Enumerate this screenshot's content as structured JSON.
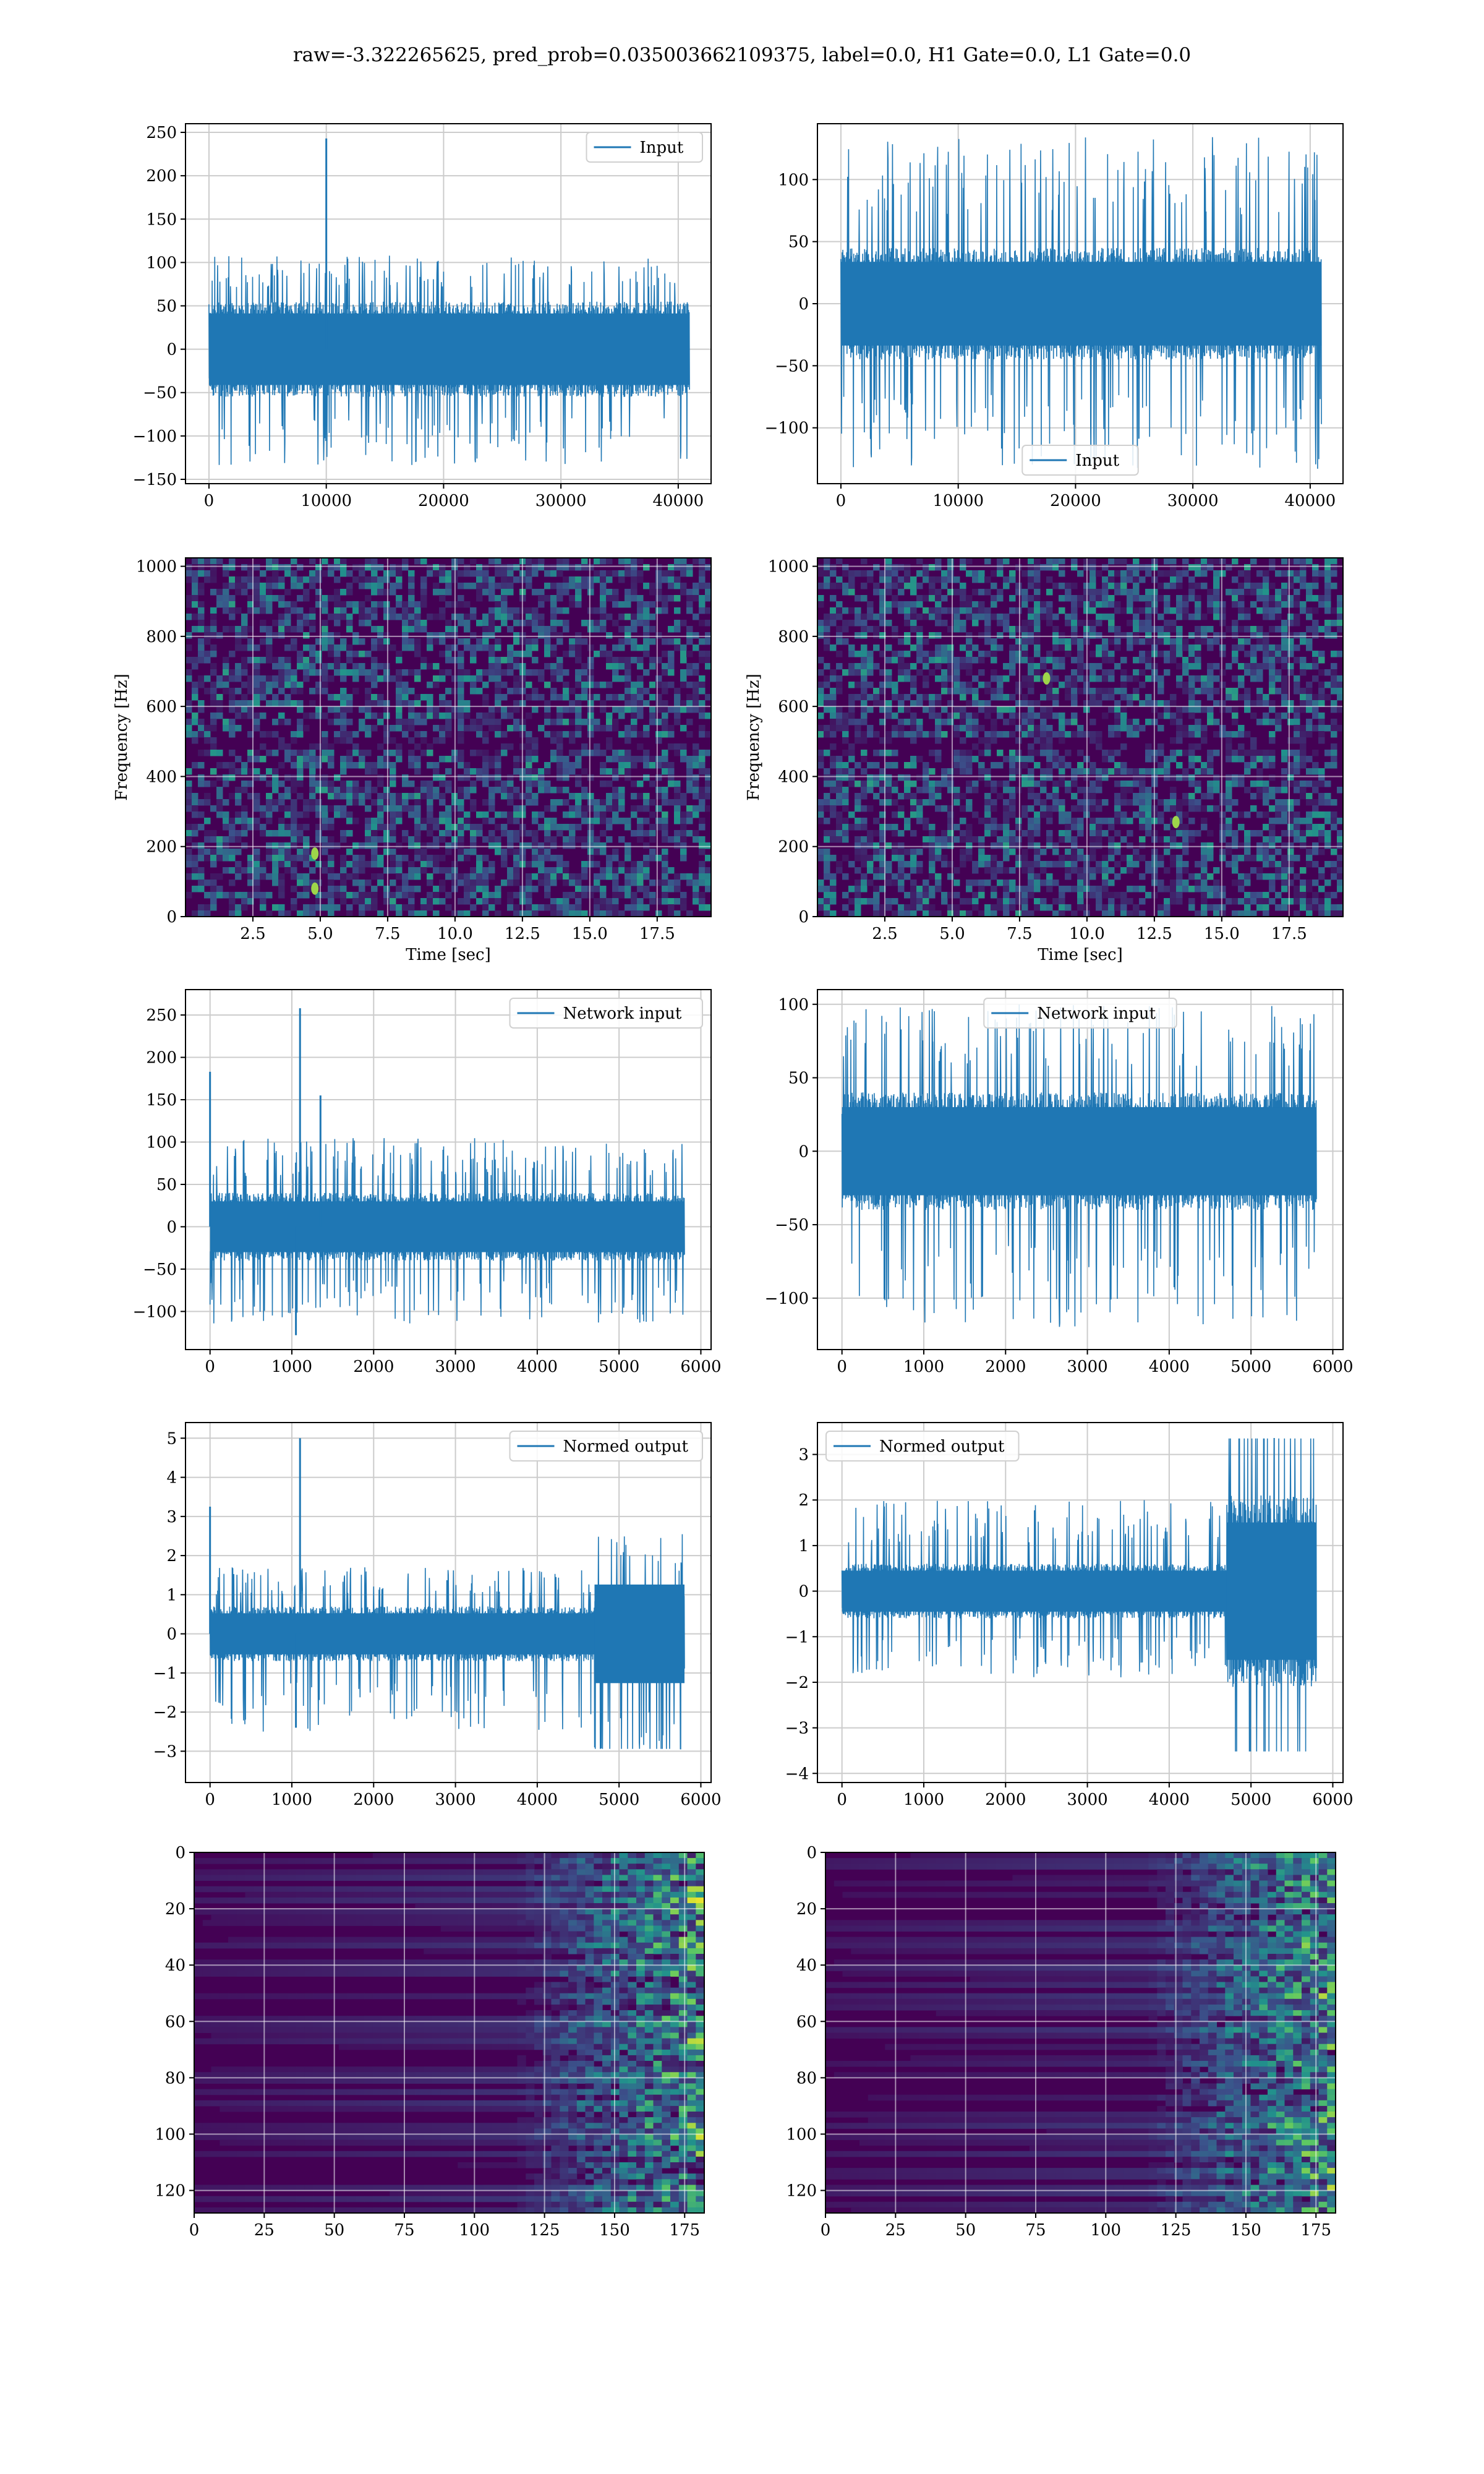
{
  "figure": {
    "title": "raw=-3.322265625, pred_prob=0.035003662109375, label=0.0, H1 Gate=0.0, L1 Gate=0.0"
  },
  "colors": {
    "line": "#1f77b4",
    "grid": "#cccccc",
    "viridis_low": "#440154",
    "viridis_high": "#fde725"
  },
  "chart_data": [
    {
      "id": "input-h1",
      "type": "line",
      "legend": "Input",
      "legend_loc": "upper right",
      "xlim": [
        -2000,
        42800
      ],
      "ylim": [
        -155,
        260
      ],
      "xticks": [
        0,
        10000,
        20000,
        30000,
        40000
      ],
      "yticks": [
        -150,
        -100,
        -50,
        0,
        50,
        100,
        150,
        200,
        250
      ],
      "series": [
        {
          "x_range": [
            0,
            40960
          ],
          "band_lo": -55,
          "band_hi": 55,
          "peak_hi": 108,
          "peak_lo": -135,
          "spikes": [
            {
              "x": 10000,
              "y": 243
            }
          ]
        }
      ]
    },
    {
      "id": "input-l1",
      "type": "line",
      "legend": "Input",
      "legend_loc": "lower center",
      "xlim": [
        -2000,
        42800
      ],
      "ylim": [
        -145,
        145
      ],
      "xticks": [
        0,
        10000,
        20000,
        30000,
        40000
      ],
      "yticks": [
        -100,
        -50,
        0,
        50,
        100
      ],
      "series": [
        {
          "x_range": [
            0,
            40960
          ],
          "band_lo": -45,
          "band_hi": 45,
          "peak_hi": 135,
          "peak_lo": -135,
          "spikes": []
        }
      ]
    },
    {
      "id": "spectrogram-h1",
      "type": "heatmap",
      "xlabel": "Time [sec]",
      "ylabel": "Frequency [Hz]",
      "xlim": [
        0,
        19.5
      ],
      "ylim": [
        0,
        1024
      ],
      "xticks": [
        2.5,
        5.0,
        7.5,
        10.0,
        12.5,
        15.0,
        17.5
      ],
      "xtick_labels": [
        "2.5",
        "5.0",
        "7.5",
        "10.0",
        "12.5",
        "15.0",
        "17.5"
      ],
      "yticks": [
        0,
        200,
        400,
        600,
        800,
        1000
      ],
      "hotspots": [
        {
          "x": 4.8,
          "y": 80
        },
        {
          "x": 4.8,
          "y": 180
        }
      ]
    },
    {
      "id": "spectrogram-l1",
      "type": "heatmap",
      "xlabel": "Time [sec]",
      "ylabel": "Frequency [Hz]",
      "xlim": [
        0,
        19.5
      ],
      "ylim": [
        0,
        1024
      ],
      "xticks": [
        2.5,
        5.0,
        7.5,
        10.0,
        12.5,
        15.0,
        17.5
      ],
      "xtick_labels": [
        "2.5",
        "5.0",
        "7.5",
        "10.0",
        "12.5",
        "15.0",
        "17.5"
      ],
      "yticks": [
        0,
        200,
        400,
        600,
        800,
        1000
      ],
      "hotspots": [
        {
          "x": 8.5,
          "y": 680
        },
        {
          "x": 13.3,
          "y": 270
        }
      ]
    },
    {
      "id": "network-input-h1",
      "type": "line",
      "legend": "Network input",
      "legend_loc": "upper right",
      "xlim": [
        -300,
        6125
      ],
      "ylim": [
        -145,
        280
      ],
      "xticks": [
        0,
        1000,
        2000,
        3000,
        4000,
        5000,
        6000
      ],
      "yticks": [
        -100,
        -50,
        0,
        50,
        100,
        150,
        200,
        250
      ],
      "series": [
        {
          "x_range": [
            0,
            5800
          ],
          "band_lo": -40,
          "band_hi": 40,
          "peak_hi": 105,
          "peak_lo": -115,
          "spikes": [
            {
              "x": 0,
              "y": 183
            },
            {
              "x": 1100,
              "y": 258
            },
            {
              "x": 1050,
              "y": -128
            },
            {
              "x": 1350,
              "y": 155
            }
          ]
        }
      ]
    },
    {
      "id": "network-input-l1",
      "type": "line",
      "legend": "Network input",
      "legend_loc": "upper center",
      "xlim": [
        -300,
        6125
      ],
      "ylim": [
        -135,
        110
      ],
      "xticks": [
        0,
        1000,
        2000,
        3000,
        4000,
        5000,
        6000
      ],
      "yticks": [
        -100,
        -50,
        0,
        50,
        100
      ],
      "series": [
        {
          "x_range": [
            0,
            5800
          ],
          "band_lo": -40,
          "band_hi": 40,
          "peak_hi": 100,
          "peak_lo": -120,
          "spikes": []
        }
      ]
    },
    {
      "id": "normed-output-h1",
      "type": "line",
      "legend": "Normed output",
      "legend_loc": "upper right",
      "xlim": [
        -300,
        6125
      ],
      "ylim": [
        -3.8,
        5.4
      ],
      "xticks": [
        0,
        1000,
        2000,
        3000,
        4000,
        5000,
        6000
      ],
      "yticks": [
        -3,
        -2,
        -1,
        0,
        1,
        2,
        3,
        4,
        5
      ],
      "series": [
        {
          "x_range": [
            0,
            5800
          ],
          "band_lo": -0.7,
          "band_hi": 0.7,
          "peak_hi": 1.7,
          "peak_lo": -2.5,
          "burst_from": 4700,
          "burst_amp": 2.8,
          "spikes": [
            {
              "x": 0,
              "y": 3.25
            },
            {
              "x": 1100,
              "y": 5.0
            },
            {
              "x": 1050,
              "y": -2.4
            }
          ]
        }
      ]
    },
    {
      "id": "normed-output-l1",
      "type": "line",
      "legend": "Normed output",
      "legend_loc": "upper left",
      "xlim": [
        -300,
        6125
      ],
      "ylim": [
        -4.2,
        3.7
      ],
      "xticks": [
        0,
        1000,
        2000,
        3000,
        4000,
        5000,
        6000
      ],
      "yticks": [
        -4,
        -3,
        -2,
        -1,
        0,
        1,
        2,
        3
      ],
      "series": [
        {
          "x_range": [
            0,
            5800
          ],
          "band_lo": -0.6,
          "band_hi": 0.6,
          "peak_hi": 2.0,
          "peak_lo": -1.9,
          "burst_from": 4700,
          "burst_amp": 3.35,
          "spikes": []
        }
      ]
    },
    {
      "id": "feature-map-h1",
      "type": "heatmap",
      "xlim": [
        0,
        182
      ],
      "ylim": [
        128,
        0
      ],
      "xticks": [
        0,
        25,
        50,
        75,
        100,
        125,
        150,
        175
      ],
      "yticks": [
        0,
        20,
        40,
        60,
        80,
        100,
        120
      ]
    },
    {
      "id": "feature-map-l1",
      "type": "heatmap",
      "xlim": [
        0,
        182
      ],
      "ylim": [
        128,
        0
      ],
      "xticks": [
        0,
        25,
        50,
        75,
        100,
        125,
        150,
        175
      ],
      "yticks": [
        0,
        20,
        40,
        60,
        80,
        100,
        120
      ]
    }
  ]
}
